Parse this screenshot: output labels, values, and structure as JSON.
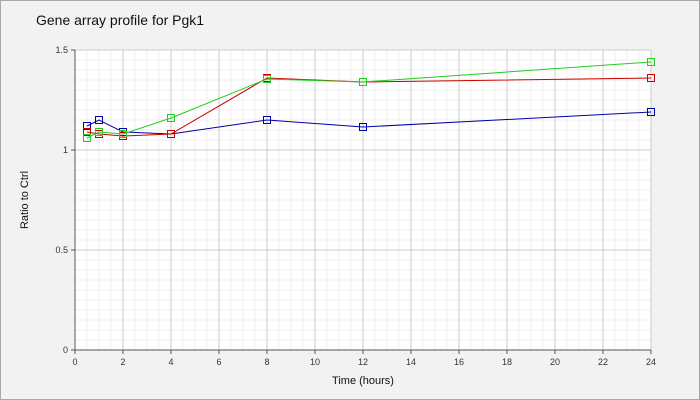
{
  "chart_data": {
    "type": "line",
    "title": "Gene array profile for Pgk1",
    "xlabel": "Time (hours)",
    "ylabel": "Ratio to Ctrl",
    "xlim": [
      0,
      24
    ],
    "ylim": [
      0,
      1.5
    ],
    "x_ticks": [
      0,
      2,
      4,
      6,
      8,
      10,
      12,
      14,
      16,
      18,
      20,
      22,
      24
    ],
    "y_ticks": [
      "0",
      "0.5",
      "1",
      "1.5"
    ],
    "y_tick_values": [
      0,
      0.5,
      1,
      1.5
    ],
    "grid": true,
    "series": [
      {
        "color": "#0000aa",
        "x": [
          0.5,
          1,
          2,
          4,
          8,
          12,
          24
        ],
        "y": [
          1.12,
          1.15,
          1.09,
          1.08,
          1.15,
          1.115,
          1.19
        ]
      },
      {
        "color": "#cc0000",
        "x": [
          0.5,
          1,
          2,
          4,
          8,
          12,
          24
        ],
        "y": [
          1.09,
          1.08,
          1.07,
          1.08,
          1.36,
          1.34,
          1.36
        ]
      },
      {
        "color": "#22cc22",
        "x": [
          0.5,
          1,
          2,
          4,
          8,
          12,
          24
        ],
        "y": [
          1.06,
          1.09,
          1.08,
          1.16,
          1.355,
          1.34,
          1.44
        ]
      }
    ]
  }
}
